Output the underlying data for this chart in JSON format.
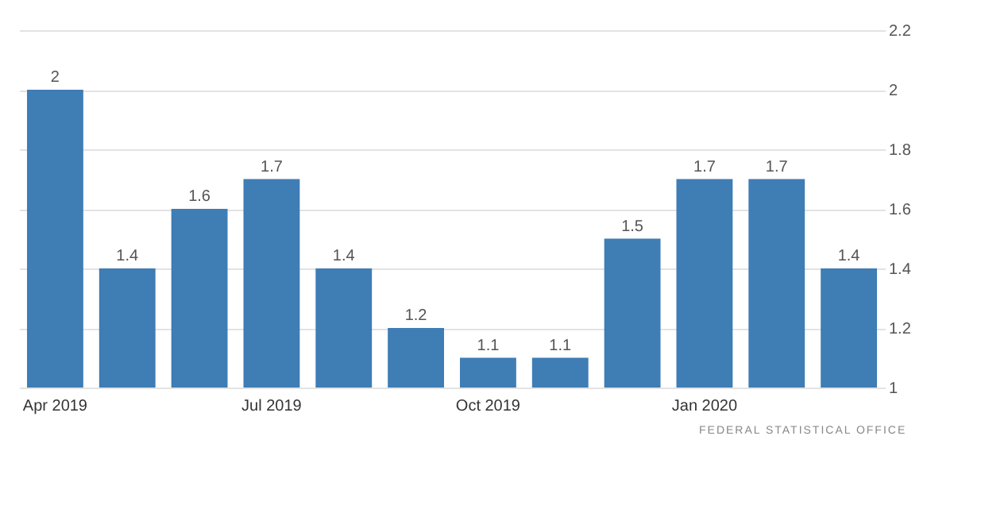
{
  "chart_data": {
    "type": "bar",
    "categories": [
      "Apr 2019",
      null,
      null,
      "Jul 2019",
      null,
      null,
      "Oct 2019",
      null,
      null,
      "Jan 2020",
      null,
      null
    ],
    "values": [
      2,
      1.4,
      1.6,
      1.7,
      1.4,
      1.2,
      1.1,
      1.1,
      1.5,
      1.7,
      1.7,
      1.4
    ],
    "color": "#3f7db5",
    "ylim": [
      1,
      2.2
    ],
    "yticks": [
      1,
      1.2,
      1.4,
      1.6,
      1.8,
      2,
      2.2
    ],
    "grid": "y",
    "data_labels": true,
    "annotations": [
      "FEDERAL STATISTICAL OFFICE"
    ]
  }
}
